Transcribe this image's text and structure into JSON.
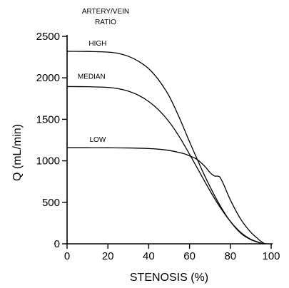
{
  "chart_data": {
    "type": "line",
    "title": "",
    "legend_title": [
      "ARTERY/VEIN",
      "RATIO"
    ],
    "xlabel": "STENOSIS (%)",
    "ylabel": "Q (mL/min)",
    "xlim": [
      0,
      100
    ],
    "ylim": [
      0,
      2500
    ],
    "xticks": [
      0,
      20,
      40,
      60,
      80,
      100
    ],
    "yticks": [
      0,
      500,
      1000,
      1500,
      2000,
      2500
    ],
    "grid": false,
    "series": [
      {
        "name": "HIGH",
        "label_at": [
          15,
          2390
        ],
        "x": [
          0,
          10,
          20,
          25,
          30,
          35,
          40,
          45,
          50,
          55,
          60,
          65,
          70,
          75,
          80,
          85,
          90,
          95,
          97
        ],
        "y": [
          2320,
          2318,
          2310,
          2295,
          2260,
          2200,
          2110,
          1970,
          1780,
          1520,
          1230,
          950,
          690,
          460,
          270,
          130,
          50,
          8,
          0
        ]
      },
      {
        "name": "MEDIAN",
        "label_at": [
          12,
          1990
        ],
        "x": [
          0,
          10,
          20,
          25,
          30,
          35,
          40,
          45,
          50,
          55,
          60,
          65,
          70,
          75,
          80,
          85,
          90,
          95,
          97
        ],
        "y": [
          1895,
          1893,
          1885,
          1870,
          1840,
          1790,
          1715,
          1610,
          1470,
          1290,
          1080,
          860,
          640,
          440,
          270,
          140,
          55,
          10,
          0
        ]
      },
      {
        "name": "LOW",
        "label_at": [
          15,
          1230
        ],
        "x": [
          0,
          10,
          20,
          30,
          40,
          45,
          50,
          55,
          58,
          60,
          62,
          64,
          66,
          68,
          70,
          72,
          73,
          74,
          75,
          77,
          80,
          85,
          90,
          95,
          97
        ],
        "y": [
          1158,
          1158,
          1157,
          1155,
          1148,
          1140,
          1125,
          1100,
          1080,
          1060,
          1040,
          1010,
          970,
          920,
          860,
          820,
          815,
          815,
          800,
          700,
          530,
          300,
          140,
          30,
          0
        ]
      }
    ]
  }
}
